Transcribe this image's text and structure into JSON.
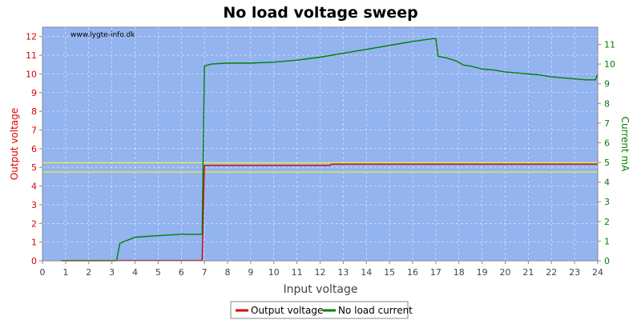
{
  "chart_data": {
    "type": "line",
    "title": "No load voltage sweep",
    "xlabel": "Input voltage",
    "ylabel_left": "Output voltage",
    "ylabel_right": "Current mA",
    "watermark": "www.lygte-info.dk",
    "xlim": [
      0,
      24
    ],
    "ylim_left": [
      0,
      12.5
    ],
    "ylim_right": [
      0,
      11.875
    ],
    "x_ticks": [
      0,
      1,
      2,
      3,
      4,
      5,
      6,
      7,
      8,
      9,
      10,
      11,
      12,
      13,
      14,
      15,
      16,
      17,
      18,
      19,
      20,
      21,
      22,
      23,
      24
    ],
    "y_left_ticks": [
      0,
      1,
      2,
      3,
      4,
      5,
      6,
      7,
      8,
      9,
      10,
      11,
      12
    ],
    "y_right_ticks": [
      0,
      1,
      2,
      3,
      4,
      5,
      6,
      7,
      8,
      9,
      10,
      11
    ],
    "grid": true,
    "legend_position": "bottom-center",
    "reference_lines": [
      {
        "axis": "left",
        "value": 5.25,
        "color": "#ffff00"
      },
      {
        "axis": "left",
        "value": 4.75,
        "color": "#ffff00"
      }
    ],
    "series": [
      {
        "name": "Output voltage",
        "axis": "left",
        "color": "#dd0000",
        "points": [
          [
            0.8,
            0.02
          ],
          [
            3.0,
            0.02
          ],
          [
            6.9,
            0.02
          ],
          [
            7.0,
            5.1
          ],
          [
            12.4,
            5.1
          ],
          [
            12.5,
            5.17
          ],
          [
            24.0,
            5.17
          ]
        ]
      },
      {
        "name": "No load current",
        "axis": "right",
        "color": "#008000",
        "points": [
          [
            0.8,
            0.0
          ],
          [
            3.0,
            0.0
          ],
          [
            3.2,
            0.0
          ],
          [
            3.35,
            0.9
          ],
          [
            3.8,
            1.1
          ],
          [
            4.0,
            1.2
          ],
          [
            5.0,
            1.28
          ],
          [
            6.0,
            1.35
          ],
          [
            6.9,
            1.35
          ],
          [
            7.0,
            9.9
          ],
          [
            7.3,
            10.0
          ],
          [
            8.0,
            10.05
          ],
          [
            9.0,
            10.05
          ],
          [
            10.0,
            10.1
          ],
          [
            11.0,
            10.2
          ],
          [
            12.0,
            10.35
          ],
          [
            13.0,
            10.55
          ],
          [
            14.0,
            10.75
          ],
          [
            15.0,
            10.95
          ],
          [
            16.0,
            11.15
          ],
          [
            16.9,
            11.3
          ],
          [
            17.0,
            11.3
          ],
          [
            17.1,
            10.4
          ],
          [
            17.5,
            10.3
          ],
          [
            17.9,
            10.15
          ],
          [
            18.2,
            9.95
          ],
          [
            18.5,
            9.9
          ],
          [
            19.0,
            9.75
          ],
          [
            19.5,
            9.7
          ],
          [
            20.0,
            9.6
          ],
          [
            20.5,
            9.55
          ],
          [
            21.0,
            9.5
          ],
          [
            21.5,
            9.45
          ],
          [
            22.0,
            9.35
          ],
          [
            22.5,
            9.3
          ],
          [
            23.0,
            9.25
          ],
          [
            23.5,
            9.2
          ],
          [
            23.9,
            9.2
          ],
          [
            24.0,
            9.5
          ]
        ]
      }
    ]
  }
}
